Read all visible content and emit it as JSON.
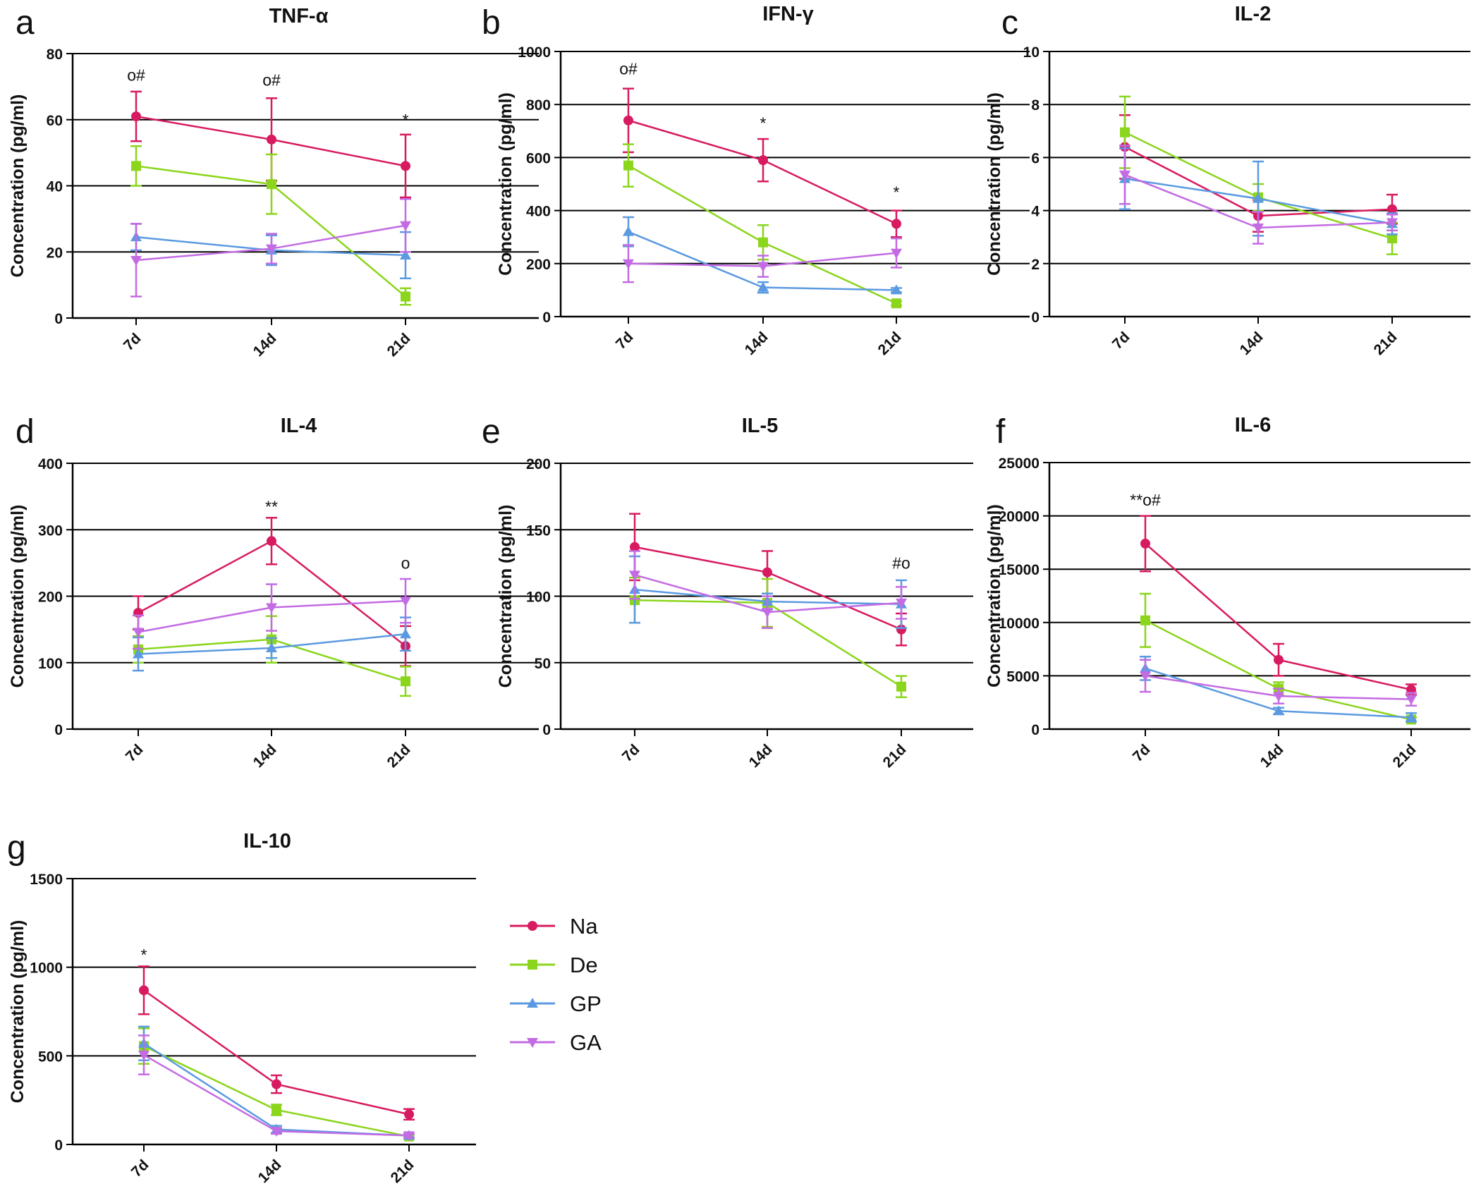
{
  "chart_data": [
    {
      "panel": "a",
      "type": "line",
      "title": "TNF-α",
      "ylabel": "Concentration (pg/ml)",
      "categories": [
        "7d",
        "14d",
        "21d"
      ],
      "ylim": [
        0,
        80
      ],
      "yticks": [
        0,
        20,
        40,
        60,
        80
      ],
      "grid": true,
      "series": [
        {
          "name": "Na",
          "values": [
            61,
            54,
            46
          ],
          "errors": [
            7.5,
            12.5,
            9.5
          ]
        },
        {
          "name": "De",
          "values": [
            46,
            40.5,
            6.5
          ],
          "errors": [
            6,
            9,
            2.5
          ]
        },
        {
          "name": "GP",
          "values": [
            24.5,
            20.5,
            19
          ],
          "errors": [
            4,
            4.5,
            7
          ]
        },
        {
          "name": "GA",
          "values": [
            17.5,
            21,
            28
          ],
          "errors": [
            11,
            4.5,
            8
          ]
        }
      ],
      "annotations": [
        {
          "category": "7d",
          "value": 73.5,
          "text": "ο#"
        },
        {
          "category": "14d",
          "value": 72,
          "text": "ο#"
        },
        {
          "category": "21d",
          "value": 60,
          "text": "*"
        }
      ]
    },
    {
      "panel": "b",
      "type": "line",
      "title": "IFN-γ",
      "ylabel": "Concentration (pg/ml)",
      "categories": [
        "7d",
        "14d",
        "21d"
      ],
      "ylim": [
        0,
        1000
      ],
      "yticks": [
        0,
        200,
        400,
        600,
        800,
        1000
      ],
      "grid": true,
      "series": [
        {
          "name": "Na",
          "values": [
            740,
            590,
            350
          ],
          "errors": [
            120,
            80,
            50
          ]
        },
        {
          "name": "De",
          "values": [
            570,
            280,
            50
          ],
          "errors": [
            80,
            65,
            8
          ]
        },
        {
          "name": "GP",
          "values": [
            320,
            110,
            100
          ],
          "errors": [
            55,
            20,
            8
          ]
        },
        {
          "name": "GA",
          "values": [
            200,
            190,
            240
          ],
          "errors": [
            70,
            40,
            55
          ]
        }
      ],
      "annotations": [
        {
          "category": "7d",
          "value": 935,
          "text": "ο#"
        },
        {
          "category": "14d",
          "value": 730,
          "text": "*"
        },
        {
          "category": "21d",
          "value": 470,
          "text": "*"
        }
      ]
    },
    {
      "panel": "c",
      "type": "line",
      "title": "IL-2",
      "ylabel": "Concentration (pg/ml)",
      "categories": [
        "7d",
        "14d",
        "21d"
      ],
      "ylim": [
        0,
        10
      ],
      "yticks": [
        0,
        2,
        4,
        6,
        8,
        10
      ],
      "grid": true,
      "series": [
        {
          "name": "Na",
          "values": [
            6.4,
            3.8,
            4.05
          ],
          "errors": [
            1.2,
            0.6,
            0.55
          ]
        },
        {
          "name": "De",
          "values": [
            6.95,
            4.5,
            2.95
          ],
          "errors": [
            1.35,
            0.5,
            0.6
          ]
        },
        {
          "name": "GP",
          "values": [
            5.2,
            4.45,
            3.5
          ],
          "errors": [
            1.15,
            1.4,
            0.4
          ]
        },
        {
          "name": "GA",
          "values": [
            5.35,
            3.35,
            3.55
          ],
          "errors": [
            1.1,
            0.6,
            0.3
          ]
        }
      ],
      "annotations": []
    },
    {
      "panel": "d",
      "type": "line",
      "title": "IL-4",
      "ylabel": "Concentration (pg/ml)",
      "categories": [
        "7d",
        "14d",
        "21d"
      ],
      "ylim": [
        0,
        400
      ],
      "yticks": [
        0,
        100,
        200,
        300,
        400
      ],
      "grid": true,
      "series": [
        {
          "name": "Na",
          "values": [
            175,
            283,
            125
          ],
          "errors": [
            25,
            35,
            30
          ]
        },
        {
          "name": "De",
          "values": [
            120,
            135,
            72
          ],
          "errors": [
            20,
            35,
            22
          ]
        },
        {
          "name": "GP",
          "values": [
            113,
            122,
            143
          ],
          "errors": [
            25,
            15,
            25
          ]
        },
        {
          "name": "GA",
          "values": [
            146,
            183,
            193
          ],
          "errors": [
            25,
            35,
            33
          ]
        }
      ],
      "annotations": [
        {
          "category": "14d",
          "value": 335,
          "text": "**"
        },
        {
          "category": "21d",
          "value": 250,
          "text": "ο"
        }
      ]
    },
    {
      "panel": "e",
      "type": "line",
      "title": "IL-5",
      "ylabel": "Concentration (pg/ml)",
      "categories": [
        "7d",
        "14d",
        "21d"
      ],
      "ylim": [
        0,
        200
      ],
      "yticks": [
        0,
        50,
        100,
        150,
        200
      ],
      "grid": true,
      "series": [
        {
          "name": "Na",
          "values": [
            137,
            118,
            75
          ],
          "errors": [
            25,
            16,
            12
          ]
        },
        {
          "name": "De",
          "values": [
            97,
            95,
            32
          ],
          "errors": [
            17,
            18,
            8
          ]
        },
        {
          "name": "GP",
          "values": [
            105,
            96,
            94
          ],
          "errors": [
            25,
            6,
            18
          ]
        },
        {
          "name": "GA",
          "values": [
            116,
            88,
            95
          ],
          "errors": [
            18,
            12,
            12
          ]
        }
      ],
      "annotations": [
        {
          "category": "21d",
          "value": 125,
          "text": "#ο"
        }
      ]
    },
    {
      "panel": "f",
      "type": "line",
      "title": "IL-6",
      "ylabel": "Concentration (pg/ml)",
      "categories": [
        "7d",
        "14d",
        "21d"
      ],
      "ylim": [
        0,
        25000
      ],
      "yticks": [
        0,
        5000,
        10000,
        15000,
        20000,
        25000
      ],
      "grid": true,
      "series": [
        {
          "name": "Na",
          "values": [
            17400,
            6500,
            3700
          ],
          "errors": [
            2600,
            1500,
            500
          ]
        },
        {
          "name": "De",
          "values": [
            10200,
            3800,
            900
          ],
          "errors": [
            2500,
            600,
            200
          ]
        },
        {
          "name": "GP",
          "values": [
            5700,
            1700,
            1100
          ],
          "errors": [
            1100,
            300,
            400
          ]
        },
        {
          "name": "GA",
          "values": [
            5000,
            3100,
            2800
          ],
          "errors": [
            1500,
            700,
            600
          ]
        }
      ],
      "annotations": [
        {
          "category": "7d",
          "value": 21500,
          "text": "**ο#"
        }
      ]
    },
    {
      "panel": "g",
      "type": "line",
      "title": "IL-10",
      "ylabel": "Concentration (pg/ml)",
      "categories": [
        "7d",
        "14d",
        "21d"
      ],
      "ylim": [
        0,
        1500
      ],
      "yticks": [
        0,
        500,
        1000,
        1500
      ],
      "grid": true,
      "series": [
        {
          "name": "Na",
          "values": [
            870,
            340,
            170
          ],
          "errors": [
            135,
            50,
            30
          ]
        },
        {
          "name": "De",
          "values": [
            555,
            195,
            45
          ],
          "errors": [
            100,
            30,
            10
          ]
        },
        {
          "name": "GP",
          "values": [
            570,
            85,
            50
          ],
          "errors": [
            95,
            20,
            10
          ]
        },
        {
          "name": "GA",
          "values": [
            505,
            75,
            50
          ],
          "errors": [
            110,
            15,
            12
          ]
        }
      ],
      "annotations": [
        {
          "category": "7d",
          "value": 1070,
          "text": "*"
        }
      ]
    }
  ],
  "legend": [
    {
      "name": "Na",
      "color": "#d81b60",
      "marker": "circle"
    },
    {
      "name": "De",
      "color": "#8bd51c",
      "marker": "square"
    },
    {
      "name": "GP",
      "color": "#5b9ae0",
      "marker": "triangle-up"
    },
    {
      "name": "GA",
      "color": "#c36be3",
      "marker": "triangle-down"
    }
  ]
}
